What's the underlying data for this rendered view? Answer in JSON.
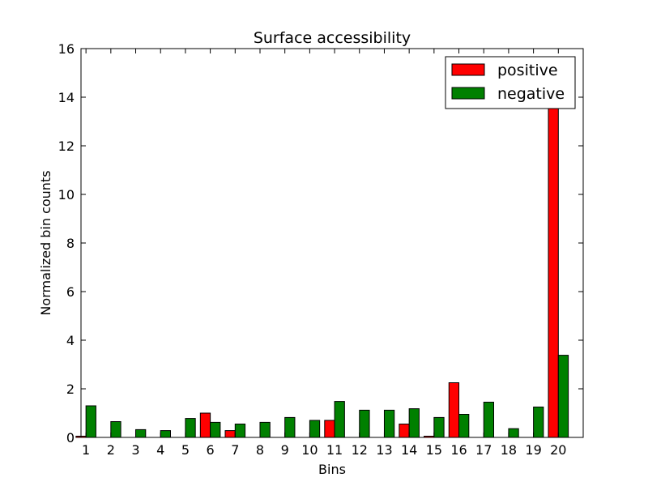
{
  "chart_data": {
    "type": "bar",
    "title": "Surface accessibility",
    "xlabel": "Bins",
    "ylabel": "Normalized bin counts",
    "ylim": [
      0,
      16
    ],
    "yticks": [
      0,
      2,
      4,
      6,
      8,
      10,
      12,
      14,
      16
    ],
    "categories": [
      "1",
      "2",
      "3",
      "4",
      "5",
      "6",
      "7",
      "8",
      "9",
      "10",
      "11",
      "12",
      "13",
      "14",
      "15",
      "16",
      "17",
      "18",
      "19",
      "20"
    ],
    "series": [
      {
        "name": "positive",
        "color": "#ff0000",
        "values": [
          0.05,
          0,
          0,
          0,
          0,
          1.0,
          0.28,
          0,
          0,
          0,
          0.7,
          0,
          0,
          0.55,
          0.05,
          2.25,
          0,
          0,
          0,
          14.0
        ]
      },
      {
        "name": "negative",
        "color": "#008000",
        "values": [
          1.3,
          0.65,
          0.32,
          0.28,
          0.78,
          0.62,
          0.55,
          0.62,
          0.82,
          0.7,
          1.48,
          1.12,
          1.12,
          1.18,
          0.82,
          0.95,
          1.45,
          0.36,
          1.25,
          3.38
        ]
      }
    ],
    "legend_position": "top-right",
    "grid": false
  }
}
